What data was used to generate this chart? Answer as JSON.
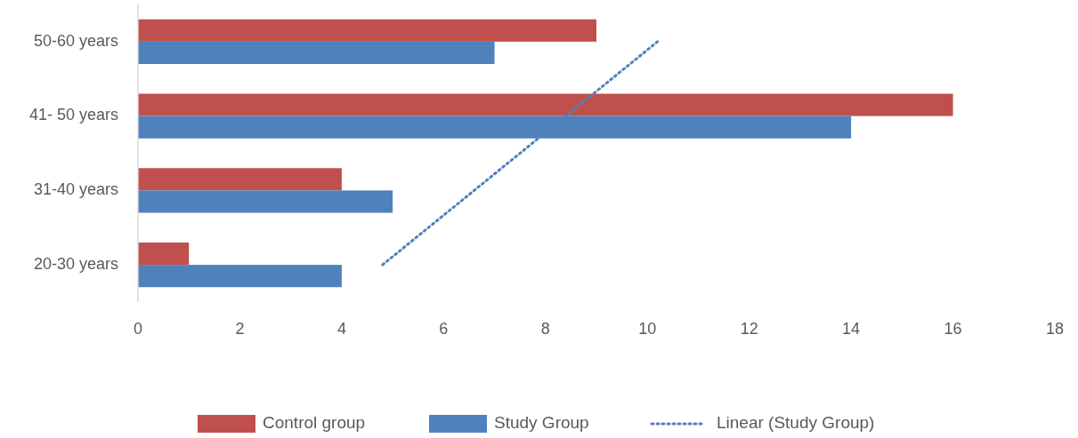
{
  "chart_data": {
    "type": "bar",
    "orientation": "horizontal",
    "categories": [
      "50-60  years",
      "41- 50  years",
      "31-40  years",
      "20-30 years"
    ],
    "series": [
      {
        "name": "Control group",
        "color": "#c0504d",
        "values": [
          9,
          16,
          4,
          1
        ]
      },
      {
        "name": "Study Group",
        "color": "#4f81bd",
        "values": [
          7,
          14,
          5,
          4
        ]
      },
      {
        "name": "Linear (Study Group)",
        "type": "line",
        "color": "#4f81bd",
        "line_style": "dotted",
        "values": [
          10.2,
          8.4,
          6.6,
          4.8
        ]
      }
    ],
    "xlim": [
      0,
      18
    ],
    "xticks": [
      0,
      2,
      4,
      6,
      8,
      10,
      12,
      14,
      16,
      18
    ],
    "grid": false,
    "legend": "bottom"
  }
}
